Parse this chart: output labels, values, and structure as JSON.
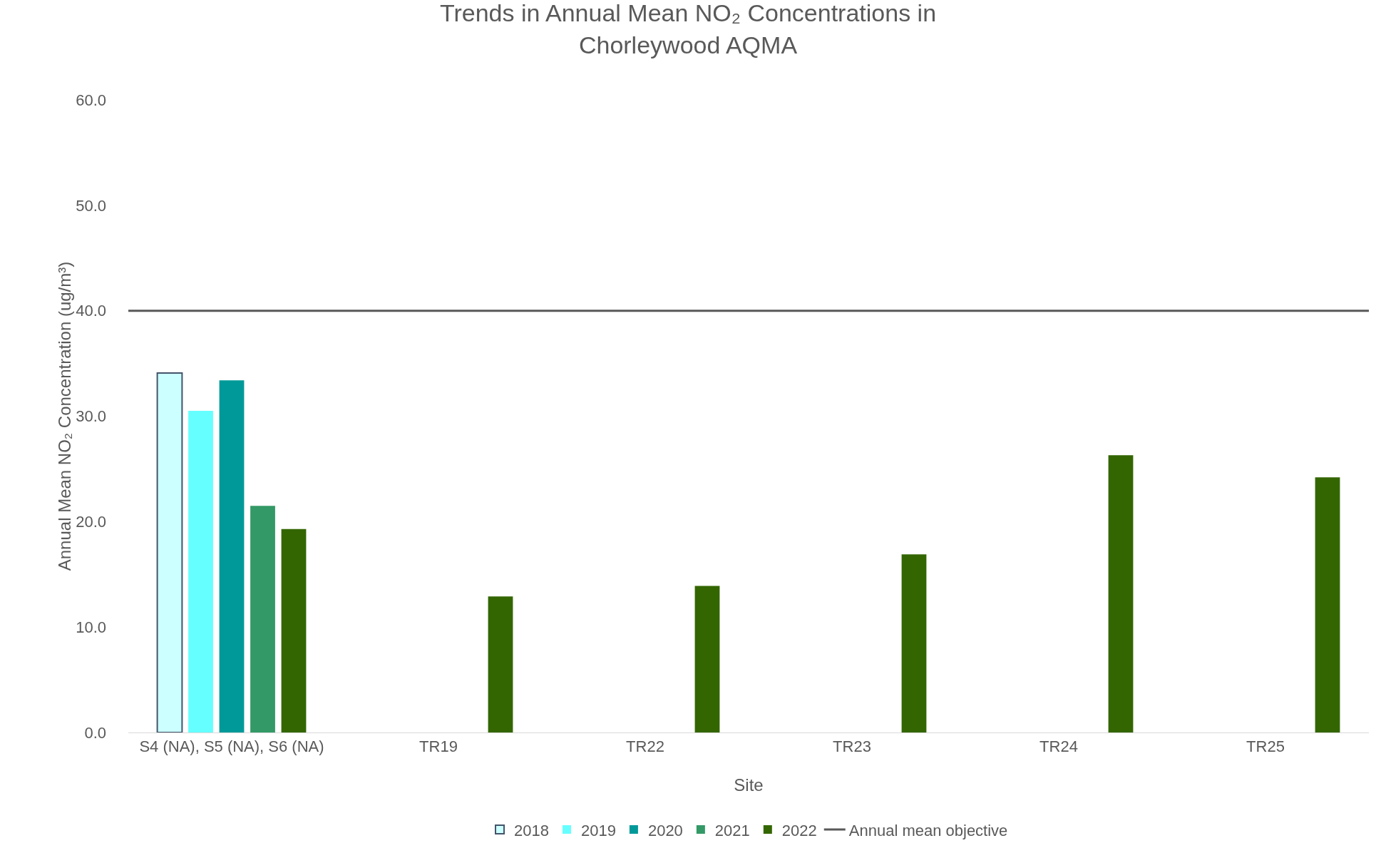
{
  "chart_data": {
    "type": "bar",
    "title": "Trends in Annual Mean NO₂ Concentrations in\nChorleywood AQMA",
    "xlabel": "Site",
    "ylabel": "Annual Mean NO₂ Concentration (ug/m³)",
    "categories": [
      "S4 (NA), S5 (NA), S6 (NA)",
      "TR19",
      "TR22",
      "TR23",
      "TR24",
      "TR25"
    ],
    "series": [
      {
        "name": "2018",
        "color": "#ccffff",
        "values": [
          34.1,
          null,
          null,
          null,
          null,
          null
        ]
      },
      {
        "name": "2019",
        "color": "#66ffff",
        "values": [
          30.5,
          null,
          null,
          null,
          null,
          null
        ]
      },
      {
        "name": "2020",
        "color": "#009999",
        "values": [
          33.4,
          null,
          null,
          null,
          null,
          null
        ]
      },
      {
        "name": "2021",
        "color": "#339966",
        "values": [
          21.5,
          null,
          null,
          null,
          null,
          null
        ]
      },
      {
        "name": "2022",
        "color": "#336600",
        "values": [
          19.3,
          12.9,
          13.9,
          16.9,
          26.3,
          24.2
        ]
      }
    ],
    "ylim": [
      0,
      60
    ],
    "yticks": [
      {
        "value": 0,
        "label": "0.0"
      },
      {
        "value": 10,
        "label": "10.0"
      },
      {
        "value": 20,
        "label": "20.0"
      },
      {
        "value": 30,
        "label": "30.0"
      },
      {
        "value": 40,
        "label": "40.0"
      },
      {
        "value": 50,
        "label": "50.0"
      },
      {
        "value": 60,
        "label": "60.0"
      }
    ],
    "ref_lines": [
      {
        "axis": "y",
        "value": 40,
        "label": "Annual mean objective",
        "color": "#595959"
      }
    ],
    "grid": false,
    "legend": "bottom"
  }
}
